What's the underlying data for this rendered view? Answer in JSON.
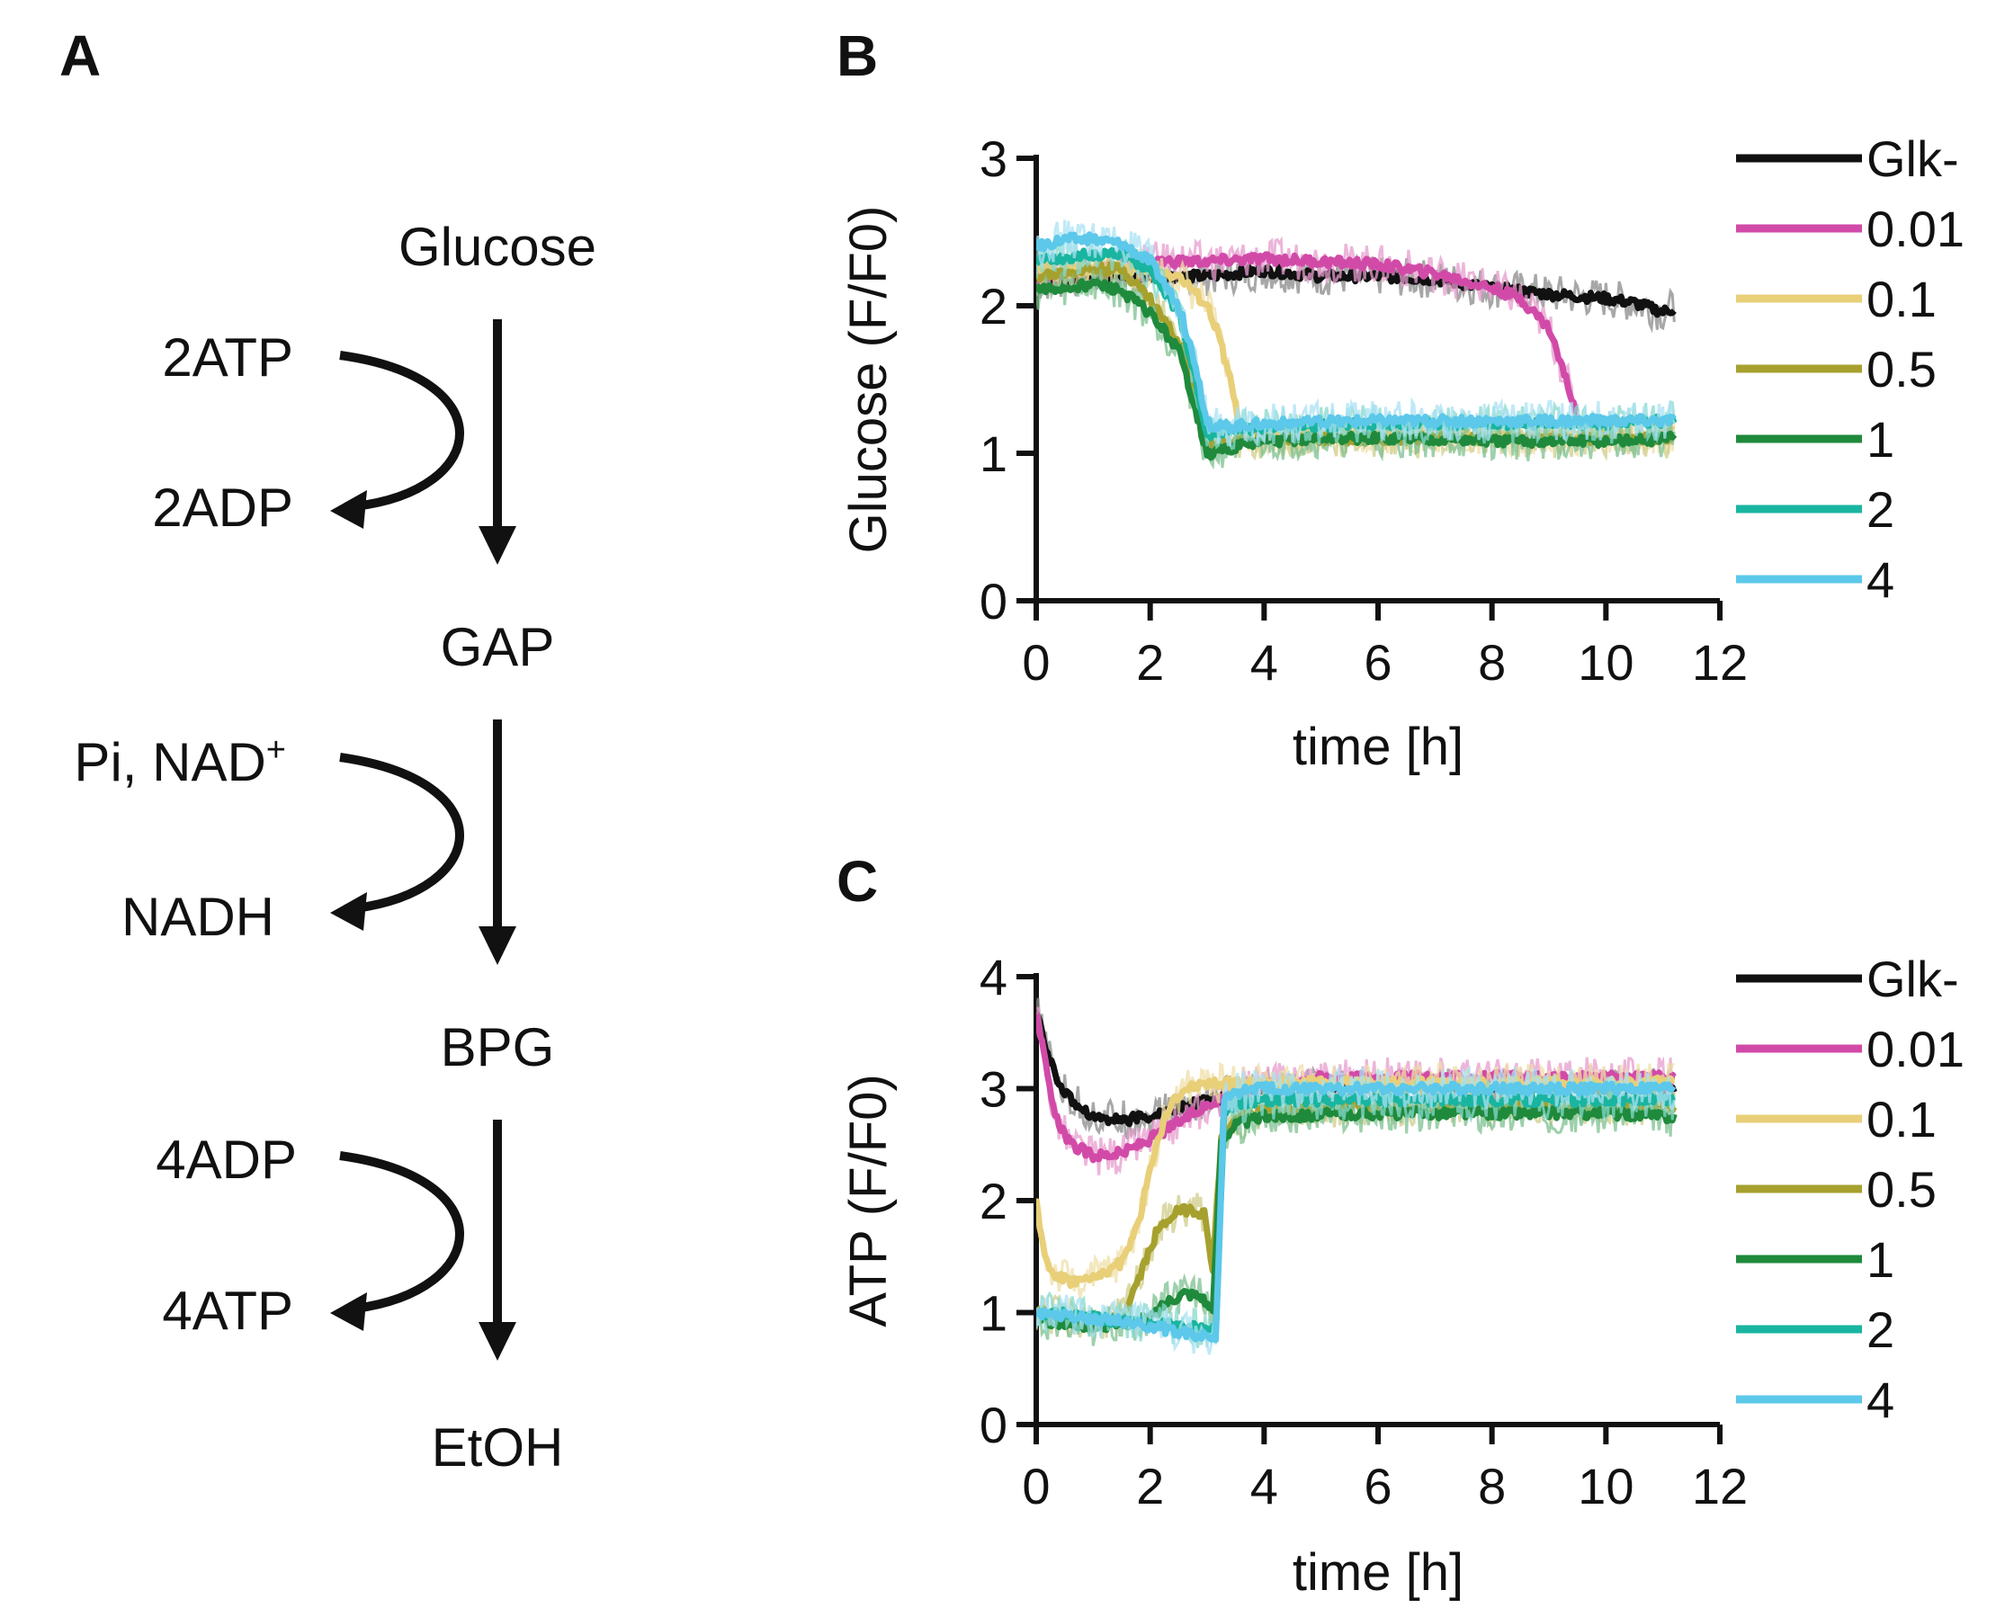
{
  "panels": {
    "a": "A",
    "b": "B",
    "c": "C"
  },
  "pathway": {
    "metabolites": [
      "Glucose",
      "GAP",
      "BPG",
      "EtOH"
    ],
    "steps": [
      {
        "in": "2ATP",
        "out": "2ADP"
      },
      {
        "in": "Pi, NAD",
        "in_sup": "+",
        "out": "NADH"
      },
      {
        "in": "4ADP",
        "out": "4ATP"
      }
    ]
  },
  "chart_data": [
    {
      "type": "line",
      "panel": "B",
      "title": "",
      "xlabel": "time [h]",
      "ylabel": "Glucose (F/F0)",
      "xlim": [
        0,
        12
      ],
      "ylim": [
        0,
        3
      ],
      "xticks": [
        "0",
        "2",
        "4",
        "6",
        "8",
        "10",
        "12"
      ],
      "yticks": [
        "0",
        "1",
        "2",
        "3"
      ],
      "legend_position": "right",
      "series": [
        {
          "name": "Glk-",
          "color": "#111111",
          "band": "#8a8a8a",
          "x": [
            0,
            0.5,
            1,
            1.5,
            2,
            2.5,
            3,
            4,
            5,
            6,
            7,
            8,
            9,
            10,
            10.5,
            11,
            11.2
          ],
          "y": [
            2.15,
            2.18,
            2.2,
            2.2,
            2.2,
            2.2,
            2.2,
            2.24,
            2.2,
            2.2,
            2.18,
            2.12,
            2.08,
            2.05,
            2.02,
            1.96,
            1.98
          ]
        },
        {
          "name": "0.01",
          "color": "#d24aa8",
          "band": "#e79ccd",
          "x": [
            0,
            1,
            2,
            3,
            4,
            5,
            6,
            7,
            8,
            8.5,
            9,
            9.2,
            9.4,
            9.5
          ],
          "y": [
            2.2,
            2.25,
            2.3,
            2.3,
            2.32,
            2.3,
            2.28,
            2.22,
            2.12,
            2.05,
            1.85,
            1.62,
            1.38,
            1.26
          ]
        },
        {
          "name": "0.1",
          "color": "#e8cf78",
          "band": "#efdfa8",
          "x": [
            0,
            1,
            2,
            2.5,
            3,
            3.2,
            3.4,
            3.6,
            4,
            6,
            8,
            10,
            11.2
          ],
          "y": [
            2.25,
            2.25,
            2.25,
            2.2,
            2.0,
            1.8,
            1.5,
            1.15,
            1.12,
            1.12,
            1.12,
            1.12,
            1.12
          ]
        },
        {
          "name": "0.5",
          "color": "#a6a12e",
          "band": "#cfcc88",
          "x": [
            0,
            1,
            1.5,
            2,
            2.5,
            2.8,
            3.0,
            3.2,
            4,
            6,
            8,
            10,
            11.2
          ],
          "y": [
            2.2,
            2.25,
            2.25,
            2.05,
            1.75,
            1.4,
            1.05,
            1.05,
            1.1,
            1.1,
            1.1,
            1.1,
            1.1
          ]
        },
        {
          "name": "1",
          "color": "#1f8a3c",
          "band": "#7cc08f",
          "x": [
            0,
            0.5,
            1,
            1.5,
            2,
            2.5,
            2.8,
            3.0,
            3.2,
            4,
            5,
            6,
            7,
            8,
            9,
            10,
            11.2
          ],
          "y": [
            2.1,
            2.12,
            2.15,
            2.1,
            1.95,
            1.7,
            1.3,
            0.98,
            1.02,
            1.08,
            1.1,
            1.1,
            1.1,
            1.08,
            1.08,
            1.08,
            1.1
          ]
        },
        {
          "name": "2",
          "color": "#19b5a0",
          "band": "#86d8cc",
          "x": [
            0,
            1,
            1.5,
            2,
            2.5,
            2.8,
            3.0,
            3.2,
            4,
            6,
            8,
            10,
            11.2
          ],
          "y": [
            2.3,
            2.35,
            2.35,
            2.25,
            1.95,
            1.5,
            1.12,
            1.15,
            1.18,
            1.2,
            1.2,
            1.2,
            1.22
          ]
        },
        {
          "name": "4",
          "color": "#5cc8ea",
          "band": "#a9e1f4",
          "x": [
            0,
            0.5,
            1,
            1.5,
            2,
            2.5,
            2.8,
            3.0,
            3.2,
            4,
            6,
            8,
            10,
            11.2
          ],
          "y": [
            2.4,
            2.45,
            2.45,
            2.42,
            2.3,
            2.0,
            1.6,
            1.2,
            1.18,
            1.2,
            1.22,
            1.22,
            1.22,
            1.22
          ]
        }
      ]
    },
    {
      "type": "line",
      "panel": "C",
      "title": "",
      "xlabel": "time [h]",
      "ylabel": "ATP (F/F0)",
      "xlim": [
        0,
        12
      ],
      "ylim": [
        0,
        4
      ],
      "xticks": [
        "0",
        "2",
        "4",
        "6",
        "8",
        "10",
        "12"
      ],
      "yticks": [
        "0",
        "1",
        "2",
        "3",
        "4"
      ],
      "legend_position": "right",
      "series": [
        {
          "name": "Glk-",
          "color": "#111111",
          "band": "#8a8a8a",
          "x": [
            0,
            0.2,
            0.5,
            1,
            1.5,
            2,
            2.5,
            3,
            3.5,
            4,
            6,
            8,
            10,
            11.2
          ],
          "y": [
            3.7,
            3.3,
            2.95,
            2.75,
            2.72,
            2.75,
            2.82,
            2.9,
            2.95,
            2.98,
            3.0,
            3.0,
            3.0,
            3.0
          ]
        },
        {
          "name": "0.01",
          "color": "#d24aa8",
          "band": "#e79ccd",
          "x": [
            0,
            0.3,
            0.6,
            1,
            1.5,
            2,
            2.5,
            3,
            3.5,
            4,
            5,
            6,
            8,
            10,
            11.2
          ],
          "y": [
            3.7,
            2.8,
            2.5,
            2.4,
            2.42,
            2.55,
            2.7,
            2.85,
            3.0,
            3.05,
            3.1,
            3.1,
            3.1,
            3.1,
            3.1
          ]
        },
        {
          "name": "0.1",
          "color": "#e8cf78",
          "band": "#efdfa8",
          "x": [
            0,
            0.15,
            0.3,
            0.6,
            1,
            1.5,
            1.8,
            2.0,
            2.3,
            2.6,
            3,
            3.5,
            4,
            6,
            8,
            10,
            11.2
          ],
          "y": [
            2.0,
            1.5,
            1.35,
            1.28,
            1.3,
            1.45,
            1.8,
            2.3,
            2.8,
            3.0,
            3.05,
            3.05,
            3.05,
            3.05,
            3.05,
            3.05,
            3.05
          ]
        },
        {
          "name": "0.5",
          "color": "#a6a12e",
          "band": "#cfcc88",
          "x": [
            0,
            0.5,
            1,
            1.5,
            1.8,
            2.1,
            2.4,
            2.7,
            2.95,
            3.1,
            3.25,
            3.5,
            4,
            6,
            8,
            10,
            11.2
          ],
          "y": [
            1.0,
            0.95,
            0.92,
            0.95,
            1.3,
            1.7,
            1.88,
            1.93,
            1.88,
            1.4,
            2.55,
            2.72,
            2.8,
            2.85,
            2.85,
            2.85,
            2.85
          ]
        },
        {
          "name": "1",
          "color": "#1f8a3c",
          "band": "#7cc08f",
          "x": [
            0,
            0.5,
            1,
            1.5,
            2.0,
            2.3,
            2.6,
            2.9,
            3.1,
            3.25,
            3.5,
            4,
            6,
            8,
            10,
            11.2
          ],
          "y": [
            0.95,
            0.9,
            0.88,
            0.9,
            0.95,
            1.1,
            1.18,
            1.15,
            1.0,
            2.55,
            2.68,
            2.75,
            2.78,
            2.78,
            2.78,
            2.75
          ]
        },
        {
          "name": "2",
          "color": "#19b5a0",
          "band": "#86d8cc",
          "x": [
            0,
            0.5,
            1,
            1.5,
            2,
            2.5,
            3.0,
            3.15,
            3.3,
            3.6,
            4,
            6,
            8,
            10,
            11.2
          ],
          "y": [
            1.0,
            0.98,
            0.95,
            0.92,
            0.9,
            0.88,
            0.85,
            0.85,
            2.8,
            2.88,
            2.9,
            2.9,
            2.9,
            2.9,
            2.9
          ]
        },
        {
          "name": "4",
          "color": "#5cc8ea",
          "band": "#a9e1f4",
          "x": [
            0,
            0.5,
            1,
            1.5,
            2,
            2.5,
            3.0,
            3.15,
            3.3,
            3.6,
            4,
            6,
            8,
            10,
            11.2
          ],
          "y": [
            1.0,
            0.98,
            0.95,
            0.92,
            0.88,
            0.83,
            0.78,
            0.75,
            2.9,
            2.98,
            3.0,
            3.0,
            3.0,
            3.0,
            3.0
          ]
        }
      ]
    }
  ]
}
